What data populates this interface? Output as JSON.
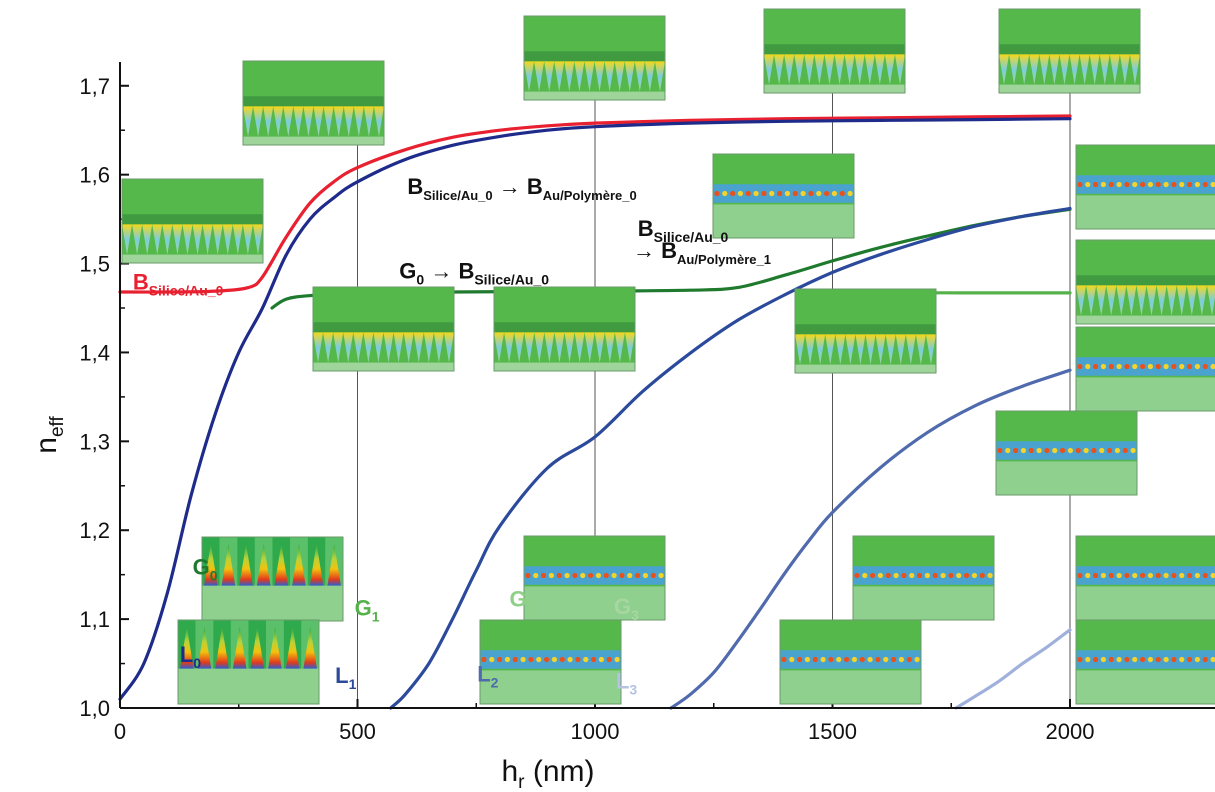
{
  "chart_data": {
    "type": "line",
    "x": [
      0,
      100,
      200,
      300,
      400,
      500,
      600,
      700,
      800,
      900,
      1000,
      1100,
      1200,
      1300,
      1400,
      1500,
      1600,
      1700,
      1800,
      1900,
      2000
    ],
    "xlim": [
      0,
      2000
    ],
    "ylim": [
      1.0,
      1.72
    ],
    "xticks": [
      "0",
      "500",
      "1000",
      "1500",
      "2000"
    ],
    "xtick_values": [
      0,
      500,
      1000,
      1500,
      2000
    ],
    "yticks": [
      "1,0",
      "1,1",
      "1,2",
      "1,3",
      "1,4",
      "1,5",
      "1,6",
      "1,7"
    ],
    "ytick_values": [
      1.0,
      1.1,
      1.2,
      1.3,
      1.4,
      1.5,
      1.6,
      1.7
    ],
    "xlabel": {
      "main": "h",
      "sub": "r",
      "unit": " (nm)"
    },
    "ylabel": {
      "main": "n",
      "sub": "eff"
    },
    "grid_vertical_at": [
      500,
      1000,
      1500,
      2000
    ],
    "series": [
      {
        "key": "b_red",
        "color": "#e8202f",
        "x": [
          0,
          100,
          200,
          270,
          300,
          350,
          400,
          450,
          500,
          600,
          700,
          800,
          900,
          1000,
          1200,
          1400,
          1600,
          1800,
          2000
        ],
        "values": [
          1.468,
          1.468,
          1.469,
          1.473,
          1.485,
          1.53,
          1.568,
          1.592,
          1.608,
          1.628,
          1.642,
          1.65,
          1.655,
          1.658,
          1.661,
          1.663,
          1.664,
          1.665,
          1.666
        ]
      },
      {
        "key": "l0",
        "color": "#1e2b8a",
        "x": [
          0,
          50,
          100,
          150,
          200,
          250,
          300,
          350,
          400,
          450,
          500,
          600,
          700,
          800,
          900,
          1000,
          1200,
          1400,
          1600,
          1800,
          2000
        ],
        "values": [
          1.01,
          1.05,
          1.13,
          1.24,
          1.33,
          1.4,
          1.45,
          1.51,
          1.55,
          1.574,
          1.592,
          1.617,
          1.633,
          1.643,
          1.65,
          1.654,
          1.658,
          1.66,
          1.661,
          1.662,
          1.663
        ]
      },
      {
        "key": "g0",
        "color": "#1f7a2e",
        "x": [
          320,
          350,
          400,
          500,
          700,
          1000,
          1200,
          1300,
          1400,
          1500,
          1600,
          1700,
          1800,
          1900,
          2000
        ],
        "values": [
          1.45,
          1.46,
          1.464,
          1.467,
          1.468,
          1.469,
          1.47,
          1.473,
          1.487,
          1.503,
          1.518,
          1.531,
          1.543,
          1.553,
          1.561
        ]
      },
      {
        "key": "l1",
        "color": "#2c4a9c",
        "x": [
          570,
          600,
          650,
          700,
          750,
          800,
          900,
          1000,
          1100,
          1200,
          1300,
          1400,
          1500,
          1600,
          1700,
          1800,
          1900,
          2000
        ],
        "values": [
          1.0,
          1.015,
          1.05,
          1.1,
          1.155,
          1.205,
          1.27,
          1.305,
          1.356,
          1.399,
          1.436,
          1.465,
          1.49,
          1.51,
          1.527,
          1.542,
          1.553,
          1.562
        ]
      },
      {
        "key": "g1",
        "color": "#55b24a",
        "x": [
          1440,
          1500,
          1600,
          1700,
          1800,
          1900,
          2000
        ],
        "values": [
          1.455,
          1.462,
          1.466,
          1.467,
          1.467,
          1.467,
          1.467
        ]
      },
      {
        "key": "l2",
        "color": "#4f6aad",
        "x": [
          1160,
          1200,
          1250,
          1300,
          1350,
          1400,
          1450,
          1500,
          1600,
          1700,
          1800,
          1900,
          2000
        ],
        "values": [
          1.0,
          1.015,
          1.04,
          1.075,
          1.113,
          1.152,
          1.188,
          1.22,
          1.27,
          1.31,
          1.34,
          1.362,
          1.38
        ]
      },
      {
        "key": "l3",
        "color": "#9fb0dc",
        "x": [
          1760,
          1800,
          1850,
          1900,
          1950,
          2000
        ],
        "values": [
          1.0,
          1.013,
          1.03,
          1.05,
          1.068,
          1.088
        ]
      }
    ],
    "annotations": [
      {
        "key": "ann-b-red",
        "base": "B",
        "sub": "Silice/Au_0",
        "color": "#e8202f",
        "x": 27,
        "y": 1.471,
        "size": 22,
        "sub_size": 14
      },
      {
        "key": "ann-b-main",
        "base": "B",
        "sub": "Silice/Au_0",
        "arrow": "→",
        "base2": "B",
        "sub2": "Au/Polymère_0",
        "color": "#111111",
        "x": 605,
        "y": 1.578,
        "size": 22,
        "sub_size": 13
      },
      {
        "key": "ann-g0-b",
        "base": "G",
        "sub": "0",
        "arrow": "→",
        "base2": "B",
        "sub2": "Silice/Au_0",
        "color": "#111111",
        "x": 588,
        "y": 1.483,
        "size": 22,
        "sub_size": 14
      },
      {
        "key": "ann-b-upper",
        "base": "B",
        "sub": "Silice/Au_0",
        "color": "#111111",
        "x": 1090,
        "y": 1.531,
        "size": 22,
        "sub_size": 14
      },
      {
        "key": "ann-b-lower",
        "arrow": "→",
        "base2": "B",
        "sub2": "Au/Polymère_1",
        "color": "#111111",
        "x": 1080,
        "y": 1.506,
        "size": 22,
        "sub_size": 13
      },
      {
        "key": "ann-g0",
        "base": "G",
        "sub": "0",
        "color": "#1f7a2e",
        "x": 153,
        "y": 1.15,
        "size": 22,
        "sub_size": 14
      },
      {
        "key": "ann-l0",
        "base": "L",
        "sub": "0",
        "color": "#1e2b8a",
        "x": 126,
        "y": 1.052,
        "size": 22,
        "sub_size": 14
      },
      {
        "key": "ann-g1",
        "base": "G",
        "sub": "1",
        "color": "#55b24a",
        "x": 494,
        "y": 1.104,
        "size": 22,
        "sub_size": 14
      },
      {
        "key": "ann-l1",
        "base": "L",
        "sub": "1",
        "color": "#2c4a9c",
        "x": 453,
        "y": 1.028,
        "size": 22,
        "sub_size": 14
      },
      {
        "key": "ann-g2",
        "base": "G",
        "sub": "2",
        "color": "#8fcf88",
        "x": 820,
        "y": 1.114,
        "size": 22,
        "sub_size": 14
      },
      {
        "key": "ann-l2",
        "base": "L",
        "sub": "2",
        "color": "#4f6aad",
        "x": 752,
        "y": 1.03,
        "size": 22,
        "sub_size": 14
      },
      {
        "key": "ann-g3",
        "base": "G",
        "sub": "3",
        "color": "#a8d6a0",
        "x": 1040,
        "y": 1.106,
        "size": 22,
        "sub_size": 14
      },
      {
        "key": "ann-l3",
        "base": "L",
        "sub": "3",
        "color": "#b4c2e4",
        "x": 1044,
        "y": 1.022,
        "size": 22,
        "sub_size": 14
      }
    ],
    "mode_profile_thumbnails": [
      {
        "kind": "bright",
        "x": 122,
        "y": 179,
        "w": 141,
        "h": 84
      },
      {
        "kind": "bright",
        "x": 243,
        "y": 61,
        "w": 141,
        "h": 84
      },
      {
        "kind": "bright",
        "x": 524,
        "y": 16,
        "w": 141,
        "h": 84
      },
      {
        "kind": "bright",
        "x": 764,
        "y": 9,
        "w": 141,
        "h": 84
      },
      {
        "kind": "bright",
        "x": 999,
        "y": 9,
        "w": 141,
        "h": 84
      },
      {
        "kind": "bright",
        "x": 313,
        "y": 287,
        "w": 141,
        "h": 84
      },
      {
        "kind": "bright",
        "x": 494,
        "y": 287,
        "w": 141,
        "h": 84
      },
      {
        "kind": "bright",
        "x": 795,
        "y": 289,
        "w": 141,
        "h": 84
      },
      {
        "kind": "cells",
        "x": 713,
        "y": 154,
        "w": 141,
        "h": 84
      },
      {
        "kind": "cells",
        "x": 1076,
        "y": 145,
        "w": 141,
        "h": 84
      },
      {
        "kind": "bright",
        "x": 1076,
        "y": 240,
        "w": 141,
        "h": 84
      },
      {
        "kind": "cells",
        "x": 1076,
        "y": 327,
        "w": 141,
        "h": 84
      },
      {
        "kind": "cells",
        "x": 996,
        "y": 411,
        "w": 141,
        "h": 84
      },
      {
        "kind": "fire",
        "x": 202,
        "y": 537,
        "w": 141,
        "h": 84
      },
      {
        "kind": "fire",
        "x": 178,
        "y": 620,
        "w": 141,
        "h": 84
      },
      {
        "kind": "cells",
        "x": 524,
        "y": 536,
        "w": 141,
        "h": 84
      },
      {
        "kind": "cells",
        "x": 480,
        "y": 620,
        "w": 141,
        "h": 84
      },
      {
        "kind": "cells",
        "x": 853,
        "y": 536,
        "w": 141,
        "h": 84
      },
      {
        "kind": "cells",
        "x": 780,
        "y": 620,
        "w": 141,
        "h": 84
      },
      {
        "kind": "cells",
        "x": 1076,
        "y": 536,
        "w": 141,
        "h": 84
      },
      {
        "kind": "cells",
        "x": 1076,
        "y": 620,
        "w": 141,
        "h": 84
      }
    ]
  }
}
